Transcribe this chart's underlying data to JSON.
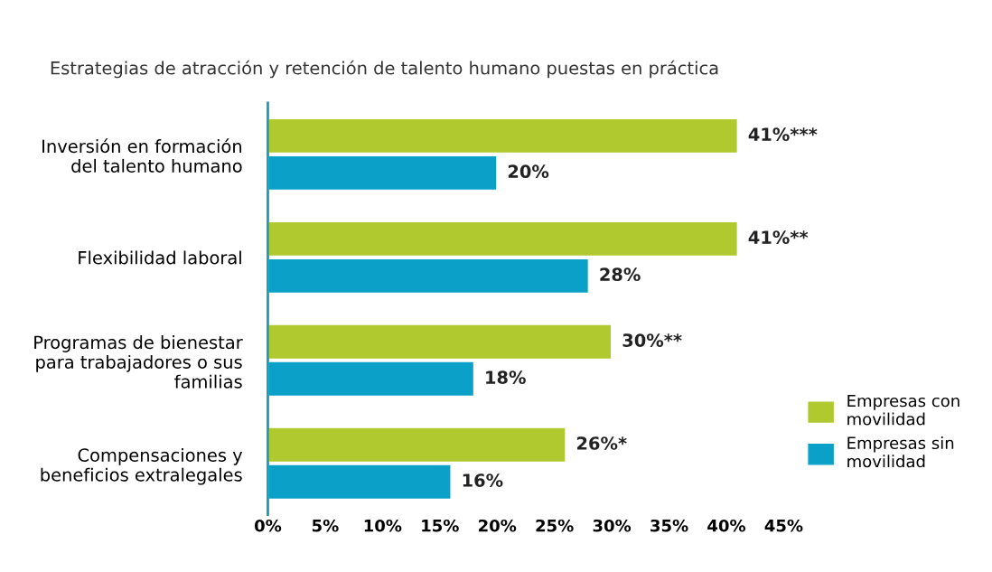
{
  "chart_data": {
    "type": "bar",
    "orientation": "horizontal",
    "title": "Estrategias de atracción y retención de talento humano puestas en práctica",
    "categories": [
      "Inversión en formación\ndel talento humano",
      "Flexibilidad laboral",
      "Programas de bienestar\npara trabajadores o sus\nfamilias",
      "Compensaciones y\nbeneficios extralegales"
    ],
    "series": [
      {
        "name": "Empresas con\nmovilidad",
        "color": "#afc92f",
        "values": [
          41,
          41,
          30,
          26
        ],
        "value_labels": [
          "41%***",
          "41%**",
          "30%**",
          "26%*"
        ]
      },
      {
        "name": "Empresas sin\nmovilidad",
        "color": "#0aa0c8",
        "values": [
          20,
          28,
          18,
          16
        ],
        "value_labels": [
          "20%",
          "28%",
          "18%",
          "16%"
        ]
      }
    ],
    "xlim": [
      0,
      45
    ],
    "xticks": [
      {
        "value": 0,
        "label": "0%"
      },
      {
        "value": 5,
        "label": "5%"
      },
      {
        "value": 10,
        "label": "10%"
      },
      {
        "value": 15,
        "label": "15%"
      },
      {
        "value": 20,
        "label": "20%"
      },
      {
        "value": 25,
        "label": "25%"
      },
      {
        "value": 30,
        "label": "30%"
      },
      {
        "value": 35,
        "label": "35%"
      },
      {
        "value": 40,
        "label": "40%"
      },
      {
        "value": 45,
        "label": "45%"
      }
    ],
    "grid": false,
    "legend": "right"
  }
}
